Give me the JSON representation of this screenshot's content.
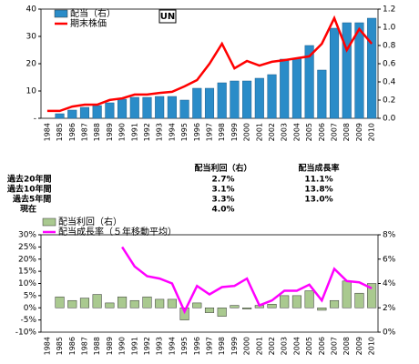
{
  "chart_data": [
    {
      "type": "bar",
      "logo": "UN",
      "legend": "upper-left",
      "categories": [
        "1984",
        "1985",
        "1986",
        "1987",
        "1988",
        "1989",
        "1990",
        "1991",
        "1992",
        "1993",
        "1994",
        "1995",
        "1996",
        "1997",
        "1998",
        "1999",
        "2000",
        "2001",
        "2002",
        "2003",
        "2004",
        "2005",
        "2006",
        "2007",
        "2008",
        "2009",
        "2010"
      ],
      "ylim": [
        0,
        40
      ],
      "yticks": [
        {
          "value": 0,
          "label": "-"
        },
        10,
        20,
        30,
        40
      ],
      "y2lim": [
        0,
        1.2
      ],
      "y2ticks": [
        {
          "value": 0,
          "label": "0.0"
        },
        0.2,
        0.4,
        0.6,
        0.8,
        {
          "value": 1,
          "label": "1.0"
        },
        1.2
      ],
      "series": [
        {
          "name": "配当（右）",
          "type": "bar",
          "axis": "y2",
          "color": "#2a8cc8",
          "values": [
            0,
            0.05,
            0.09,
            0.12,
            0.14,
            0.17,
            0.21,
            0.23,
            0.23,
            0.24,
            0.24,
            0.2,
            0.33,
            0.33,
            0.39,
            0.41,
            0.41,
            0.44,
            0.48,
            0.65,
            0.66,
            0.8,
            0.53,
            0.99,
            1.05,
            1.05,
            1.1
          ]
        },
        {
          "name": "期末株価",
          "type": "line",
          "axis": "y",
          "color": "#ff0000",
          "values": [
            2.7,
            2.7,
            4.3,
            5,
            5,
            6.7,
            7.3,
            8.7,
            8.7,
            9.3,
            9.7,
            11.7,
            14,
            20,
            27.3,
            18.3,
            21,
            19.3,
            20.7,
            21.3,
            22,
            22.7,
            27.3,
            36.7,
            25,
            32.7,
            27.3
          ]
        }
      ]
    },
    {
      "type": "bar",
      "legend": "upper-left",
      "categories": [
        "1984",
        "1985",
        "1986",
        "1987",
        "1988",
        "1989",
        "1990",
        "1991",
        "1992",
        "1993",
        "1994",
        "1995",
        "1996",
        "1997",
        "1998",
        "1999",
        "2000",
        "2001",
        "2002",
        "2003",
        "2004",
        "2005",
        "2006",
        "2007",
        "2008",
        "2009",
        "2010"
      ],
      "ylim": [
        -10,
        30
      ],
      "yticks": [
        {
          "value": -10,
          "label": "-10%"
        },
        {
          "value": -5,
          "label": "-5%"
        },
        {
          "value": 0,
          "label": "0%"
        },
        {
          "value": 5,
          "label": "5%"
        },
        {
          "value": 10,
          "label": "10%"
        },
        {
          "value": 15,
          "label": "15%"
        },
        {
          "value": 20,
          "label": "20%"
        },
        {
          "value": 25,
          "label": "25%"
        },
        {
          "value": 30,
          "label": "30%"
        }
      ],
      "y2lim": [
        0,
        8
      ],
      "y2ticks": [
        {
          "value": 0,
          "label": "0%"
        },
        {
          "value": 2,
          "label": "2%"
        },
        {
          "value": 4,
          "label": "4%"
        },
        {
          "value": 6,
          "label": "6%"
        },
        {
          "value": 8,
          "label": "8%"
        }
      ],
      "series": [
        {
          "name": "配当利回（右）",
          "type": "bar",
          "axis": "y2",
          "color": "#a9c98f",
          "values": [
            null,
            2.9,
            2.6,
            2.8,
            3.1,
            2.4,
            2.9,
            2.6,
            2.9,
            2.7,
            2.7,
            1.0,
            2.4,
            1.6,
            1.3,
            2.2,
            1.9,
            2.2,
            2.3,
            3.0,
            3.0,
            3.4,
            1.8,
            2.6,
            4.2,
            3.2,
            4.0
          ]
        },
        {
          "name": "配当成長率（５年移動平均）",
          "type": "line",
          "axis": "y",
          "color": "#ff00ff",
          "values": [
            null,
            null,
            null,
            null,
            null,
            null,
            25,
            17,
            13,
            12,
            10,
            -1.5,
            9,
            5.5,
            8.5,
            9,
            12,
            1,
            3,
            7,
            7,
            9.5,
            3,
            16,
            11,
            10.5,
            8
          ]
        }
      ]
    }
  ],
  "table": {
    "header": [
      "配当利回（右）",
      "配当成長率"
    ],
    "rows": [
      [
        "過去20年間",
        "2.7%",
        "11.1%"
      ],
      [
        "過去10年間",
        "3.1%",
        "13.8%"
      ],
      [
        "過去5年間",
        "3.3%",
        "13.0%"
      ],
      [
        "現在",
        "4.0%"
      ]
    ]
  }
}
